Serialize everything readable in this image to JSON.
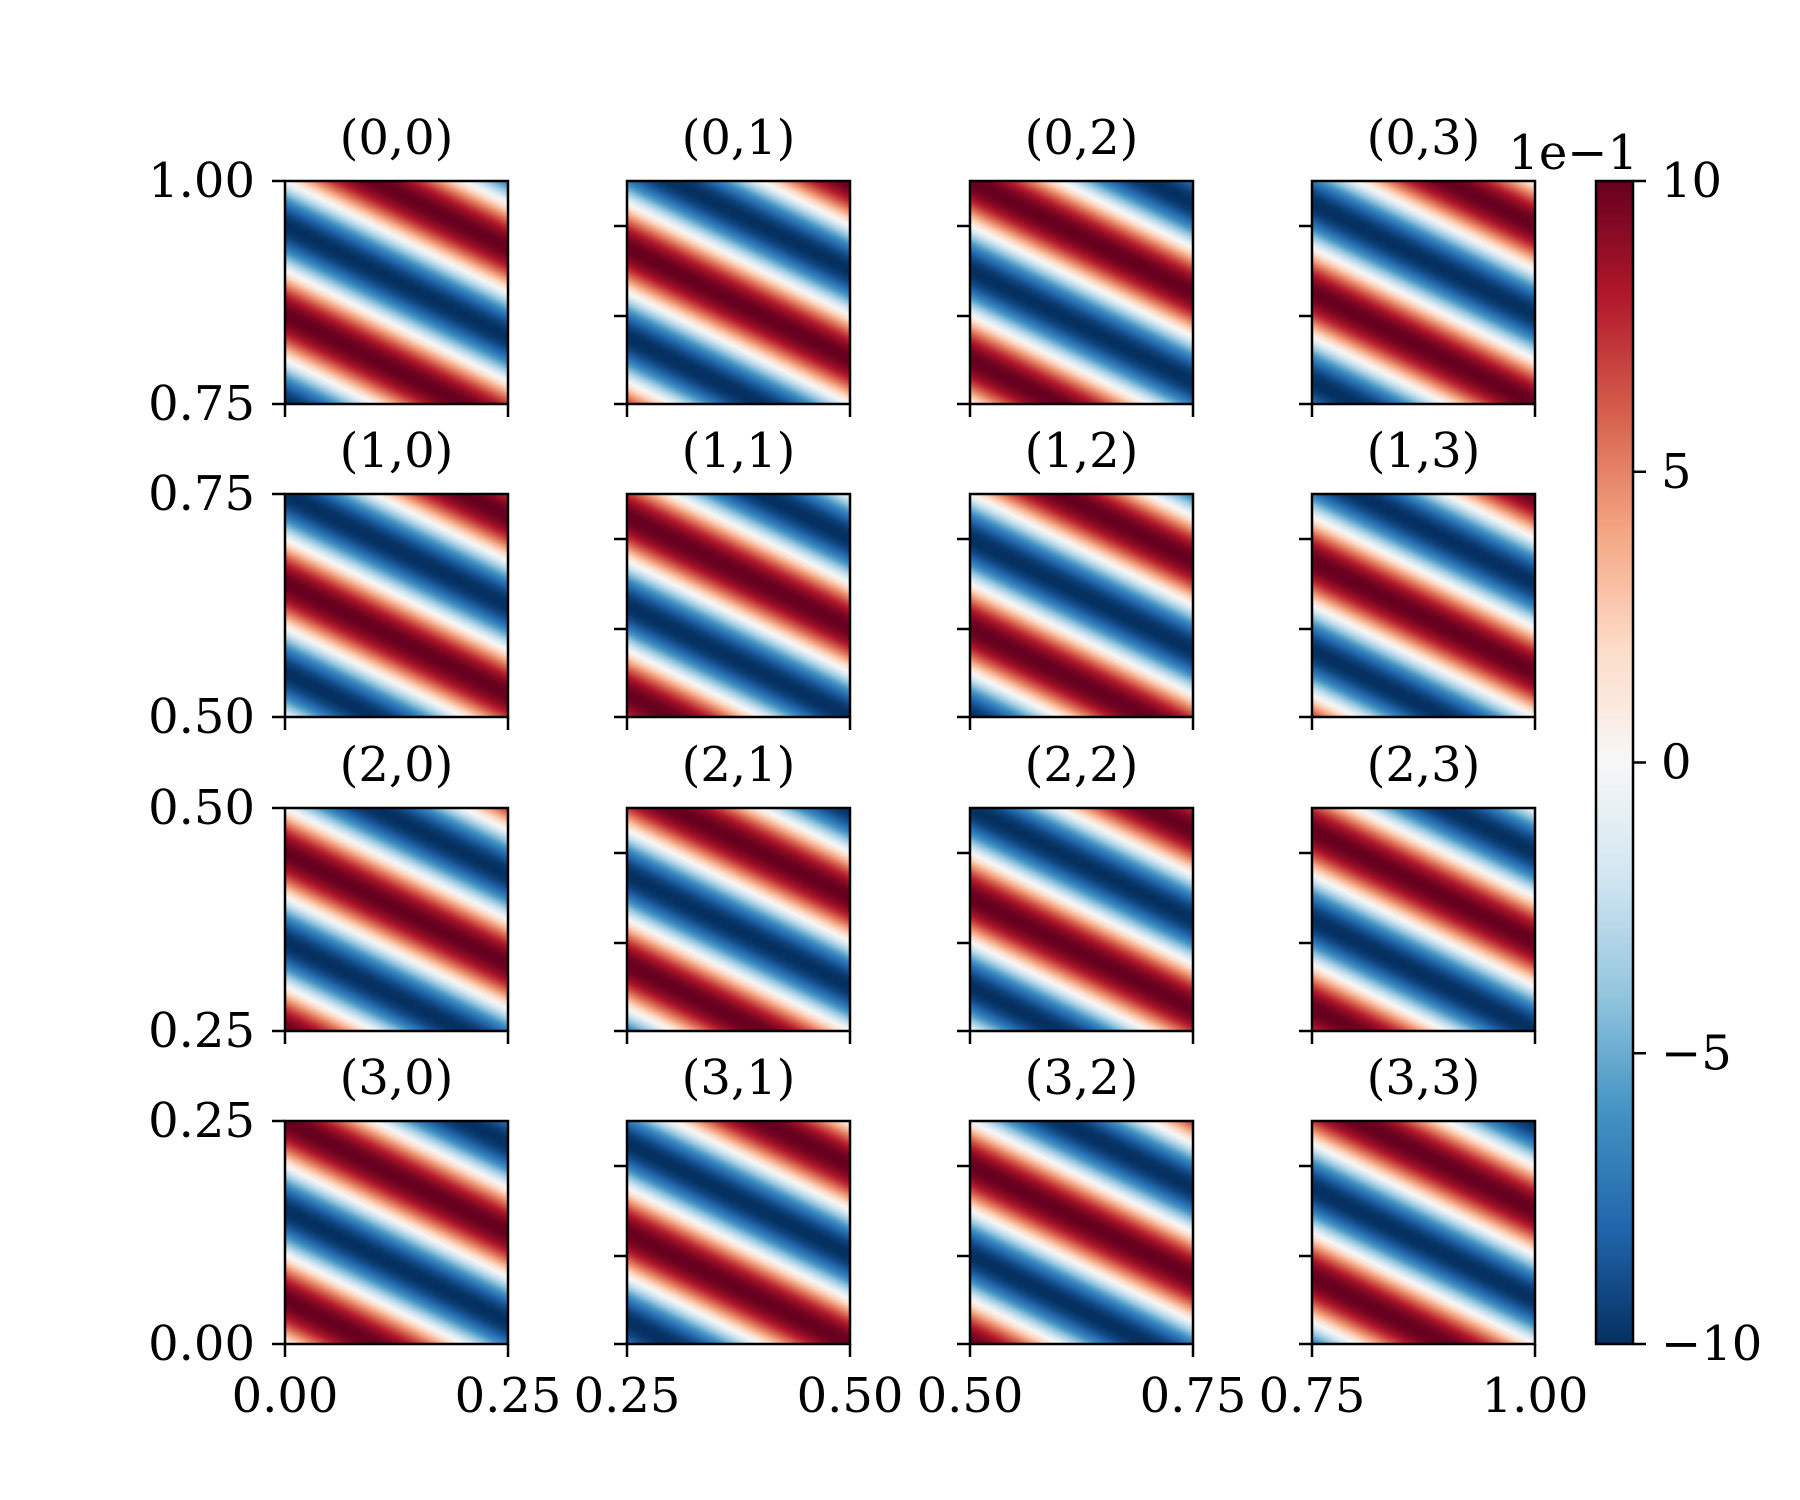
{
  "chart_data": {
    "type": "heatmap",
    "colormap": "RdBu_r",
    "field": {
      "function": "sin",
      "kx": 15.707963,
      "ky": 31.415927
    },
    "colorbar": {
      "range": [
        -10,
        10
      ],
      "ticks": [
        -10,
        -5,
        0,
        5,
        10
      ],
      "tick_labels": [
        "−10",
        "−5",
        "0",
        "5",
        "10"
      ],
      "offset_text": "1e−1"
    },
    "x_ranges": [
      [
        0.0,
        0.25
      ],
      [
        0.25,
        0.5
      ],
      [
        0.5,
        0.75
      ],
      [
        0.75,
        1.0
      ]
    ],
    "y_ranges": [
      [
        0.75,
        1.0
      ],
      [
        0.5,
        0.75
      ],
      [
        0.25,
        0.5
      ],
      [
        0.0,
        0.25
      ]
    ],
    "x_tick_labels": [
      [
        "0.00",
        "0.25"
      ],
      [
        "0.25",
        "0.50"
      ],
      [
        "0.50",
        "0.75"
      ],
      [
        "0.75",
        "1.00"
      ]
    ],
    "y_tick_labels": [
      [
        "1.00",
        "0.75"
      ],
      [
        "0.75",
        "0.50"
      ],
      [
        "0.50",
        "0.25"
      ],
      [
        "0.25",
        "0.00"
      ]
    ],
    "panel_titles": [
      [
        "(0,0)",
        "(0,1)",
        "(0,2)",
        "(0,3)"
      ],
      [
        "(1,0)",
        "(1,1)",
        "(1,2)",
        "(1,3)"
      ],
      [
        "(2,0)",
        "(2,1)",
        "(2,2)",
        "(2,3)"
      ],
      [
        "(3,0)",
        "(3,1)",
        "(3,2)",
        "(3,3)"
      ]
    ]
  }
}
